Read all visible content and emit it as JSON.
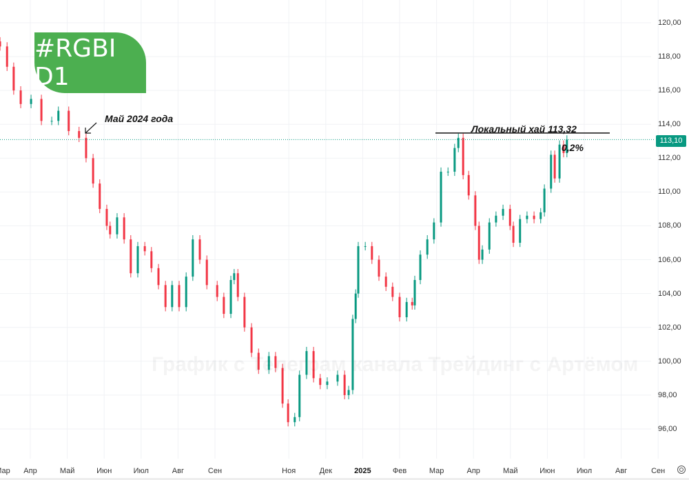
{
  "badge": "#RGBI D1",
  "annotations": {
    "may_label": "Май 2024 года",
    "local_high": "Локальный хай 113,32",
    "percent": "0,2%"
  },
  "watermark": "График с Телеграм канала Трейдинг с Артёмом",
  "price_tag": "113,10",
  "colors": {
    "up": "#089981",
    "down": "#f23645",
    "badge": "#4caf50"
  },
  "chart_data": {
    "type": "candlestick",
    "title": "#RGBI D1",
    "x_unit": "months since 2024-03-01 (1 = Апр 2024)",
    "ylim": [
      95,
      121
    ],
    "y_ticks": [
      "96,00",
      "98,00",
      "100,00",
      "102,00",
      "104,00",
      "106,00",
      "108,00",
      "110,00",
      "112,00",
      "114,00",
      "116,00",
      "118,00",
      "120,00"
    ],
    "y_tick_values": [
      96,
      98,
      100,
      102,
      104,
      106,
      108,
      110,
      112,
      114,
      116,
      118,
      120
    ],
    "x_ticks": [
      {
        "m": 0,
        "label": "Мар"
      },
      {
        "m": 1,
        "label": "Апр"
      },
      {
        "m": 2,
        "label": "Май"
      },
      {
        "m": 3,
        "label": "Июн"
      },
      {
        "m": 4,
        "label": "Июл"
      },
      {
        "m": 5,
        "label": "Авг"
      },
      {
        "m": 6,
        "label": "Сен"
      },
      {
        "m": 8,
        "label": "Ноя"
      },
      {
        "m": 9,
        "label": "Дек"
      },
      {
        "m": 10,
        "label": "2025",
        "bold": true
      },
      {
        "m": 11,
        "label": "Фев"
      },
      {
        "m": 12,
        "label": "Мар"
      },
      {
        "m": 13,
        "label": "Апр"
      },
      {
        "m": 14,
        "label": "Май"
      },
      {
        "m": 15,
        "label": "Июн"
      },
      {
        "m": 16,
        "label": "Июл"
      },
      {
        "m": 17,
        "label": "Авг"
      },
      {
        "m": 18,
        "label": "Сен"
      }
    ],
    "last_price": 113.1,
    "local_high": 113.32,
    "x": [
      0.18,
      0.37,
      0.55,
      0.74,
      1.02,
      1.3,
      1.58,
      1.76,
      2.04,
      2.32,
      2.51,
      2.7,
      2.88,
      3.07,
      3.16,
      3.35,
      3.54,
      3.72,
      3.91,
      4.1,
      4.28,
      4.47,
      4.66,
      4.84,
      5.03,
      5.22,
      5.4,
      5.59,
      5.78,
      6.06,
      6.24,
      6.43,
      6.52,
      6.62,
      6.8,
      6.99,
      7.18,
      7.46,
      7.64,
      7.83,
      7.98,
      8.16,
      8.29,
      8.48,
      8.67,
      8.85,
      9.04,
      9.32,
      9.51,
      9.62,
      9.73,
      9.81,
      9.88,
      10.07,
      10.25,
      10.44,
      10.63,
      10.81,
      11.0,
      11.19,
      11.34,
      11.41,
      11.56,
      11.75,
      11.93,
      12.12,
      12.31,
      12.49,
      12.59,
      12.72,
      12.87,
      13.05,
      13.15,
      13.24,
      13.43,
      13.61,
      13.8,
      13.99,
      14.08,
      14.26,
      14.45,
      14.64,
      14.82,
      14.92,
      15.1,
      15.2,
      15.33,
      15.44,
      15.53
    ],
    "close": [
      118.6,
      117.4,
      116.0,
      115.2,
      115.5,
      114.2,
      114.2,
      114.8,
      113.6,
      113.2,
      112.0,
      110.5,
      109.0,
      108.0,
      107.5,
      108.5,
      107.2,
      105.2,
      106.8,
      106.5,
      105.5,
      104.5,
      103.2,
      104.5,
      103.2,
      105.0,
      107.2,
      106.0,
      104.5,
      103.8,
      102.8,
      104.8,
      105.2,
      103.8,
      102.0,
      100.5,
      99.5,
      100.3,
      99.6,
      97.5,
      96.4,
      96.7,
      99.2,
      100.6,
      99.0,
      98.6,
      98.8,
      99.2,
      98.0,
      98.3,
      102.5,
      104.0,
      106.8,
      106.8,
      106.0,
      105.0,
      104.4,
      103.8,
      102.6,
      103.5,
      103.3,
      104.8,
      106.3,
      107.2,
      108.2,
      111.2,
      111.2,
      112.6,
      113.2,
      111.0,
      109.8,
      108.0,
      106.0,
      106.6,
      108.2,
      108.6,
      109.0,
      108.0,
      107.0,
      108.4,
      108.6,
      108.4,
      108.8,
      110.2,
      112.2,
      110.8,
      112.8,
      112.3,
      113.1
    ]
  }
}
